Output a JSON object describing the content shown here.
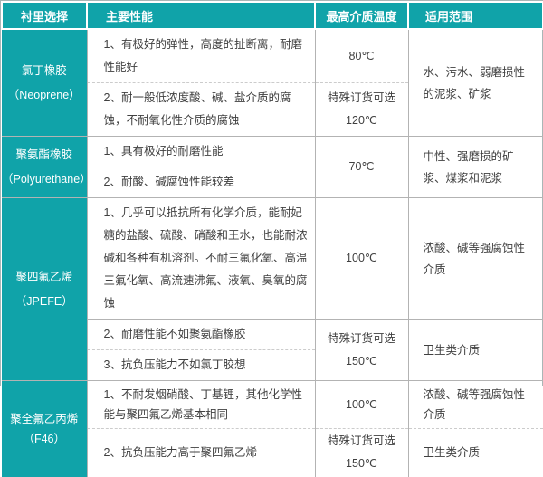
{
  "colors": {
    "accent_teal": "#10a3a9",
    "border_gray": "#b3b3b3",
    "dashed_gray": "#cccccc",
    "body_text": "#404040",
    "header_text": "#ffffff"
  },
  "header": [
    "衬里选择",
    "主要性能",
    "最高介质温度",
    "适用范围"
  ],
  "groups": [
    {
      "name": "氯丁橡胶",
      "name_en": "（Neoprene）",
      "rows": [
        {
          "perf": "1、有极好的弹性，高度的扯断离，耐磨性能好",
          "temp": "80℃"
        },
        {
          "perf": "2、耐一般低浓度酸、碱、盐介质的腐蚀，不耐氧化性介质的腐蚀",
          "temp_note": "特殊订货可选",
          "temp": "120℃"
        }
      ],
      "range": "水、污水、弱磨损性的泥浆、矿浆"
    },
    {
      "name": "聚氨酯橡胶",
      "name_en": "（Polyurethane）",
      "rows": [
        {
          "perf": "1、具有极好的耐磨性能"
        },
        {
          "perf": "2、耐酸、碱腐蚀性能较差"
        }
      ],
      "temp": "70℃",
      "range": "中性、强磨损的矿浆、煤浆和泥浆"
    },
    {
      "name": "聚四氟乙烯",
      "name_en": "（JPEFE）",
      "rows": [
        {
          "perf": "1、几乎可以抵抗所有化学介质，能耐妃糖的盐酸、硫酸、硝酸和王水，也能耐浓碱和各种有机溶剂。不耐三氟化氧、高温三氟化氧、高流速沸氟、液氧、臭氧的腐蚀",
          "temp": "100℃",
          "range": "浓酸、碱等强腐蚀性介质"
        },
        {
          "perf": "2、耐磨性能不如聚氨酯橡胶",
          "temp_note": "特殊订货可选",
          "temp": "150℃",
          "range": "卫生类介质"
        },
        {
          "perf": "3、抗负压能力不如氯丁胶想"
        }
      ]
    },
    {
      "name": "聚全氟乙丙烯",
      "name_en": "（F46）",
      "rows": [
        {
          "perf": "1、不耐发烟硝酸、丁基锂，其他化学性能与聚四氟乙烯基本相同",
          "temp": "100℃",
          "range": "浓酸、碱等强腐蚀性介质"
        },
        {
          "perf": "2、抗负压能力高于聚四氟乙烯",
          "temp_note": "特殊订货可选",
          "temp": "150℃",
          "range": "卫生类介质"
        }
      ]
    }
  ]
}
